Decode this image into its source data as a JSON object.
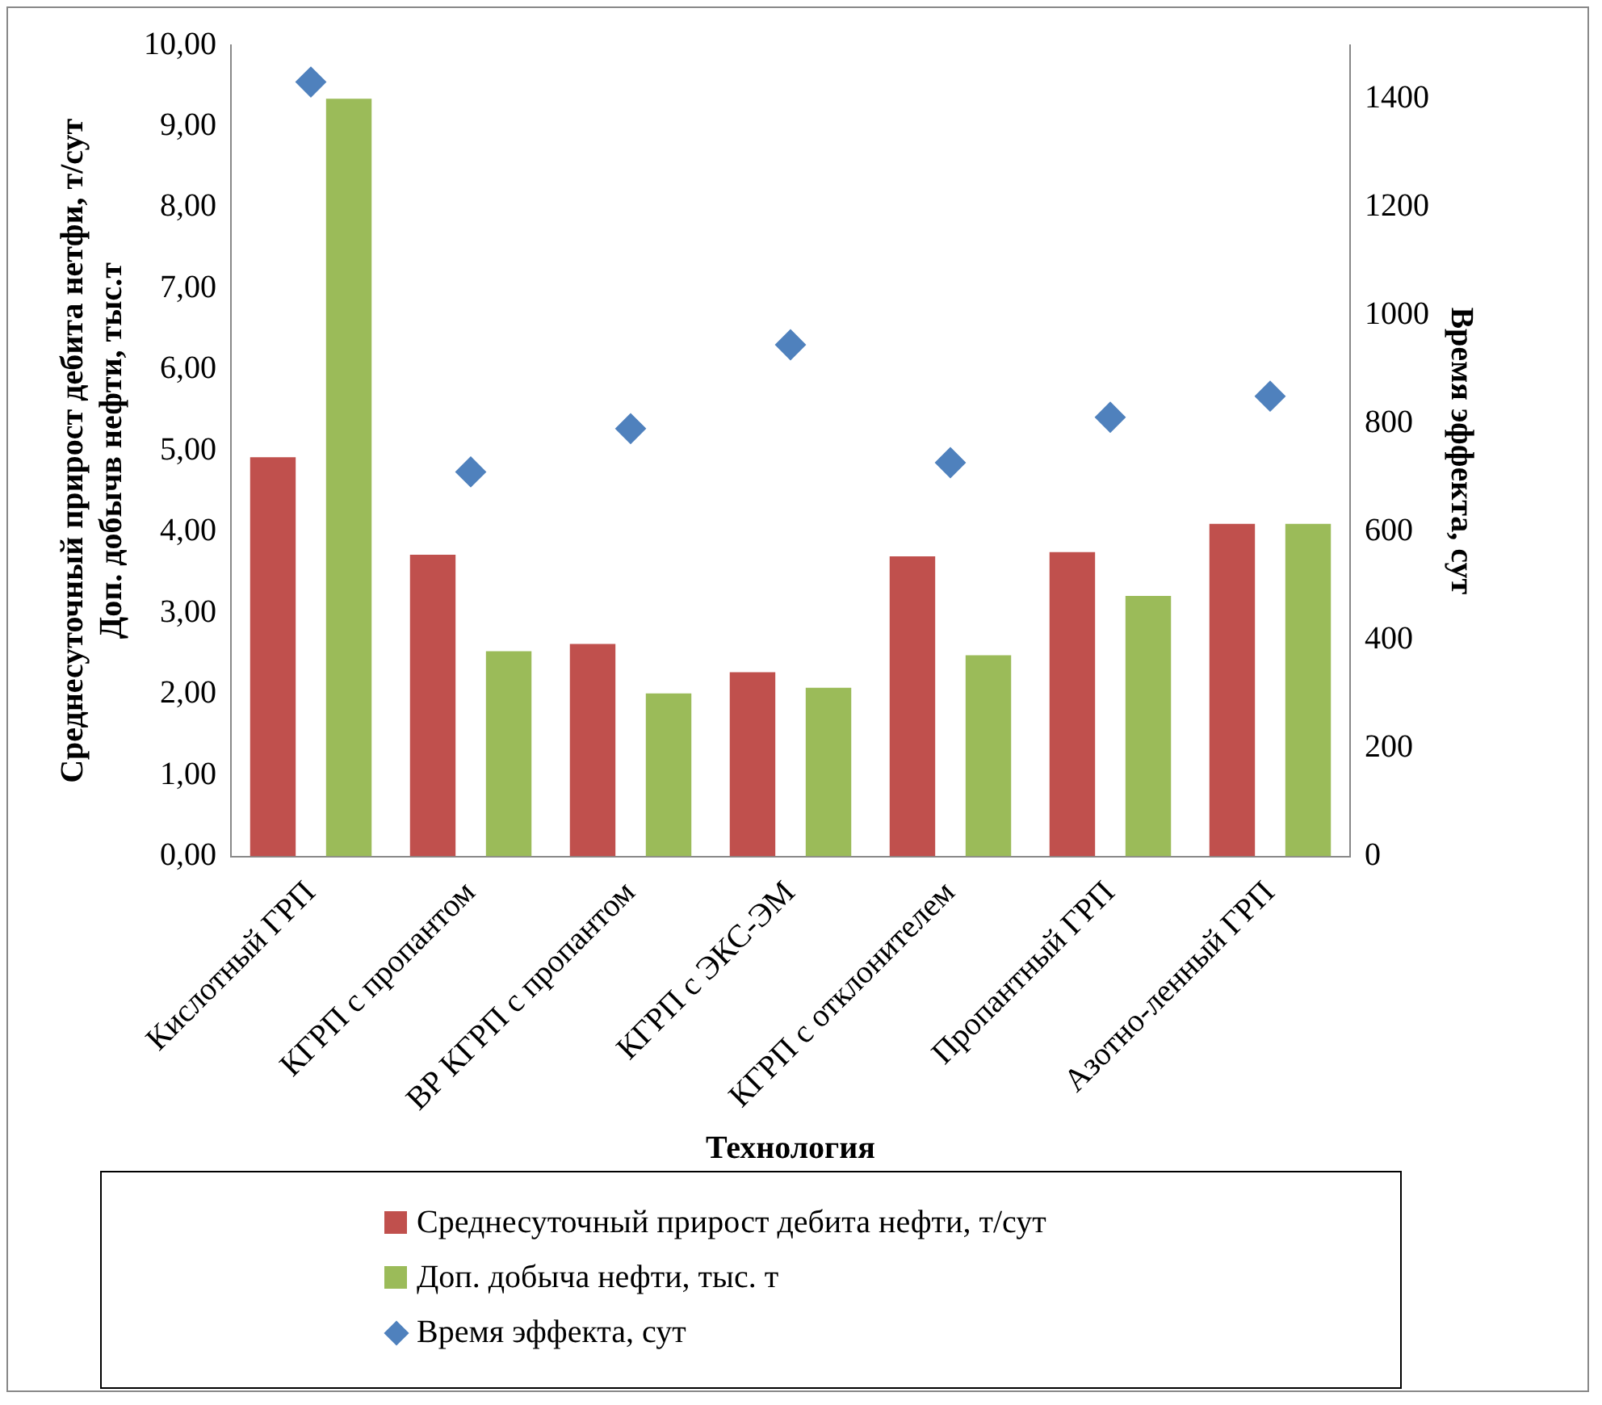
{
  "chart_data": {
    "type": "bar",
    "xlabel": "Технология",
    "ylabel": "Среднесуточный прирост дебита нетфи, т/сут\nДоп. добычв нефти, тыс.т",
    "y2label": "Время эффекта, сут",
    "categories": [
      "Кислотный ГРП",
      "КГРП с пропантом",
      "ВР КГРП с пропантом",
      "КГРП с ЭКС-ЭМ",
      "КГРП с отклонителем",
      "Пропантный ГРП",
      "Азотно-ленный ГРП"
    ],
    "series": [
      {
        "name": "Среднесуточный прирост дебита нефти, т/сут",
        "color": "#c0504d",
        "values": [
          4.92,
          3.72,
          2.62,
          2.27,
          3.7,
          3.75,
          4.1
        ]
      },
      {
        "name": "Доп. добыча нефти, тыс. т",
        "color": "#9bbb59",
        "values": [
          9.34,
          2.53,
          2.01,
          2.08,
          2.48,
          3.21,
          4.1
        ]
      },
      {
        "name": "Время эффекта, сут",
        "color": "#4f81bd",
        "type": "scatter",
        "axis": "y2",
        "marker": "diamond",
        "values": [
          1432,
          711,
          791,
          946,
          728,
          812,
          851
        ]
      }
    ],
    "ylim": [
      0,
      10
    ],
    "yticks": [
      {
        "value": 0,
        "label": "0,00"
      },
      {
        "value": 1,
        "label": "1,00"
      },
      {
        "value": 2,
        "label": "2,00"
      },
      {
        "value": 3,
        "label": "3,00"
      },
      {
        "value": 4,
        "label": "4,00"
      },
      {
        "value": 5,
        "label": "5,00"
      },
      {
        "value": 6,
        "label": "6,00"
      },
      {
        "value": 7,
        "label": "7,00"
      },
      {
        "value": 8,
        "label": "8,00"
      },
      {
        "value": 9,
        "label": "9,00"
      },
      {
        "value": 10,
        "label": "10,00"
      }
    ],
    "y2lim": [
      0,
      1500
    ],
    "y2ticks": [
      0,
      200,
      400,
      600,
      800,
      1000,
      1200,
      1400
    ],
    "grid": false,
    "legend": "bottom"
  }
}
